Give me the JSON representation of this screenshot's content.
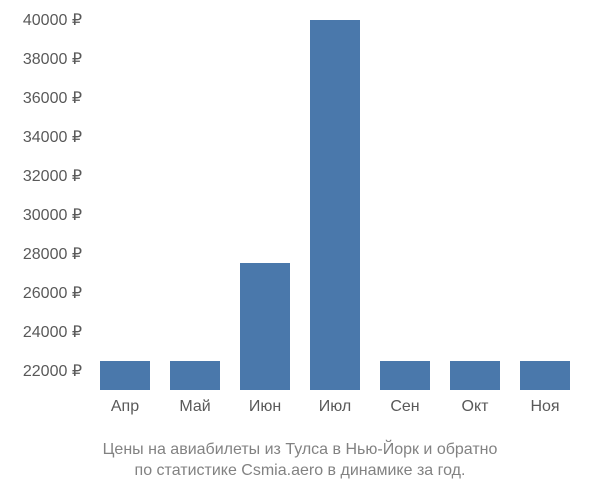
{
  "chart": {
    "type": "bar",
    "background_color": "#ffffff",
    "bar_color": "#4a78ab",
    "axis_text_color": "#595959",
    "axis_fontsize": 16,
    "bar_width_ratio": 0.72,
    "y_axis": {
      "min": 21000,
      "max": 40000,
      "tick_step": 2000,
      "ticks": [
        22000,
        24000,
        26000,
        28000,
        30000,
        32000,
        34000,
        36000,
        38000,
        40000
      ],
      "tick_labels": [
        "22000 ₽",
        "24000 ₽",
        "26000 ₽",
        "28000 ₽",
        "30000 ₽",
        "32000 ₽",
        "34000 ₽",
        "36000 ₽",
        "38000 ₽",
        "40000 ₽"
      ]
    },
    "categories": [
      "Апр",
      "Май",
      "Июн",
      "Июл",
      "Сен",
      "Окт",
      "Ноя"
    ],
    "values": [
      22500,
      22500,
      27500,
      40000,
      22500,
      22500,
      22500
    ]
  },
  "caption": {
    "line1": "Цены на авиабилеты из Тулса в Нью-Йорк и обратно",
    "line2": "по статистике Csmia.aero в динамике за год.",
    "color": "#828282",
    "fontsize": 16
  }
}
